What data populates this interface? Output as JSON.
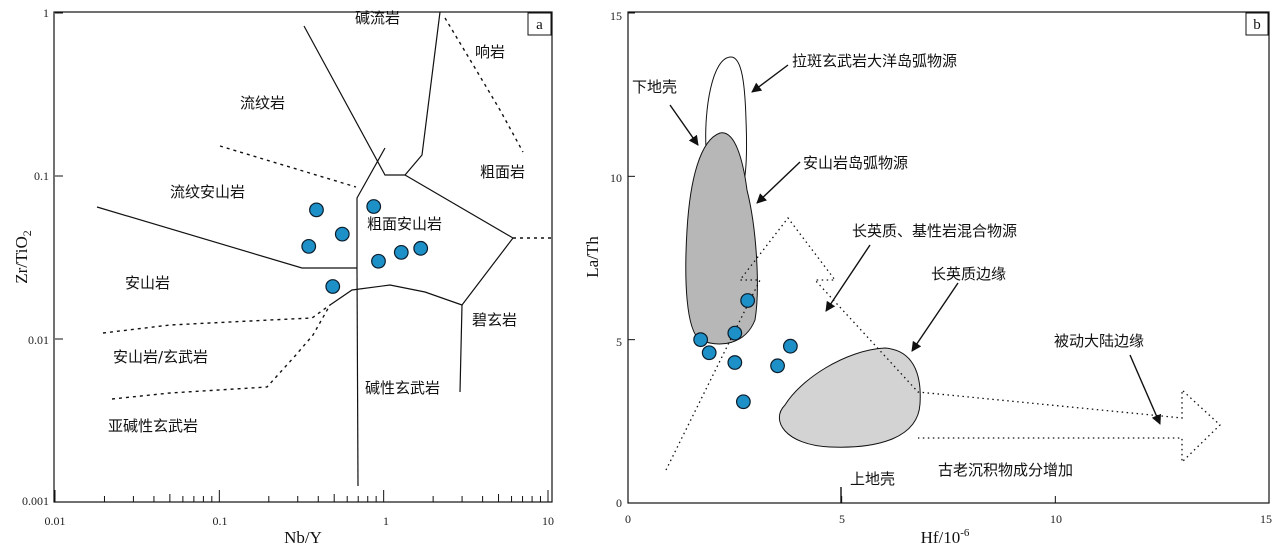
{
  "colors": {
    "point": "#1e90c8",
    "point_stroke": "#0b1c2a",
    "shade_dark": "#b7b7b7",
    "shade_light": "#d3d3d3",
    "line": "#111111"
  },
  "chart_data": [
    {
      "panel": "a",
      "type": "scatter",
      "xlabel": "Nb/Y",
      "ylabel": "Zr/TiO",
      "ylabel_sub": "2",
      "x_scale": "log",
      "y_scale": "log",
      "xlim": [
        0.01,
        10
      ],
      "ylim": [
        0.001,
        1
      ],
      "x_ticks": [
        "0.01",
        "0.1",
        "1",
        "10"
      ],
      "y_ticks": [
        "0.001",
        "0.01",
        "0.1",
        "1"
      ],
      "fields": [
        "碱流岩",
        "响岩",
        "流纹岩",
        "粗面岩",
        "流纹安山岩",
        "粗面安山岩",
        "安山岩",
        "碧玄岩",
        "安山岩/玄武岩",
        "碱性玄武岩",
        "亚碱性玄武岩"
      ],
      "points": [
        {
          "x": 0.35,
          "y": 0.037
        },
        {
          "x": 0.39,
          "y": 0.062
        },
        {
          "x": 0.56,
          "y": 0.044
        },
        {
          "x": 0.49,
          "y": 0.021
        },
        {
          "x": 0.87,
          "y": 0.065
        },
        {
          "x": 0.93,
          "y": 0.03
        },
        {
          "x": 1.28,
          "y": 0.034
        },
        {
          "x": 1.68,
          "y": 0.036
        }
      ]
    },
    {
      "panel": "b",
      "type": "scatter",
      "xlabel": "Hf/10",
      "xlabel_sup": "-6",
      "ylabel": "La/Th",
      "xlim": [
        0,
        15
      ],
      "ylim": [
        0,
        15
      ],
      "x_ticks": [
        "0",
        "5",
        "10",
        "15"
      ],
      "y_ticks": [
        "0",
        "5",
        "10",
        "15"
      ],
      "labels": [
        "拉斑玄武岩大洋岛弧物源",
        "下地壳",
        "安山岩岛弧物源",
        "长英质、基性岩混合物源",
        "长英质边缘",
        "被动大陆边缘",
        "上地壳",
        "古老沉积物成分增加"
      ],
      "points": [
        {
          "x": 1.7,
          "y": 5.0
        },
        {
          "x": 1.9,
          "y": 4.6
        },
        {
          "x": 2.5,
          "y": 5.2
        },
        {
          "x": 2.5,
          "y": 4.3
        },
        {
          "x": 2.7,
          "y": 3.1
        },
        {
          "x": 2.8,
          "y": 6.2
        },
        {
          "x": 3.5,
          "y": 4.2
        },
        {
          "x": 3.8,
          "y": 4.8
        }
      ]
    }
  ]
}
